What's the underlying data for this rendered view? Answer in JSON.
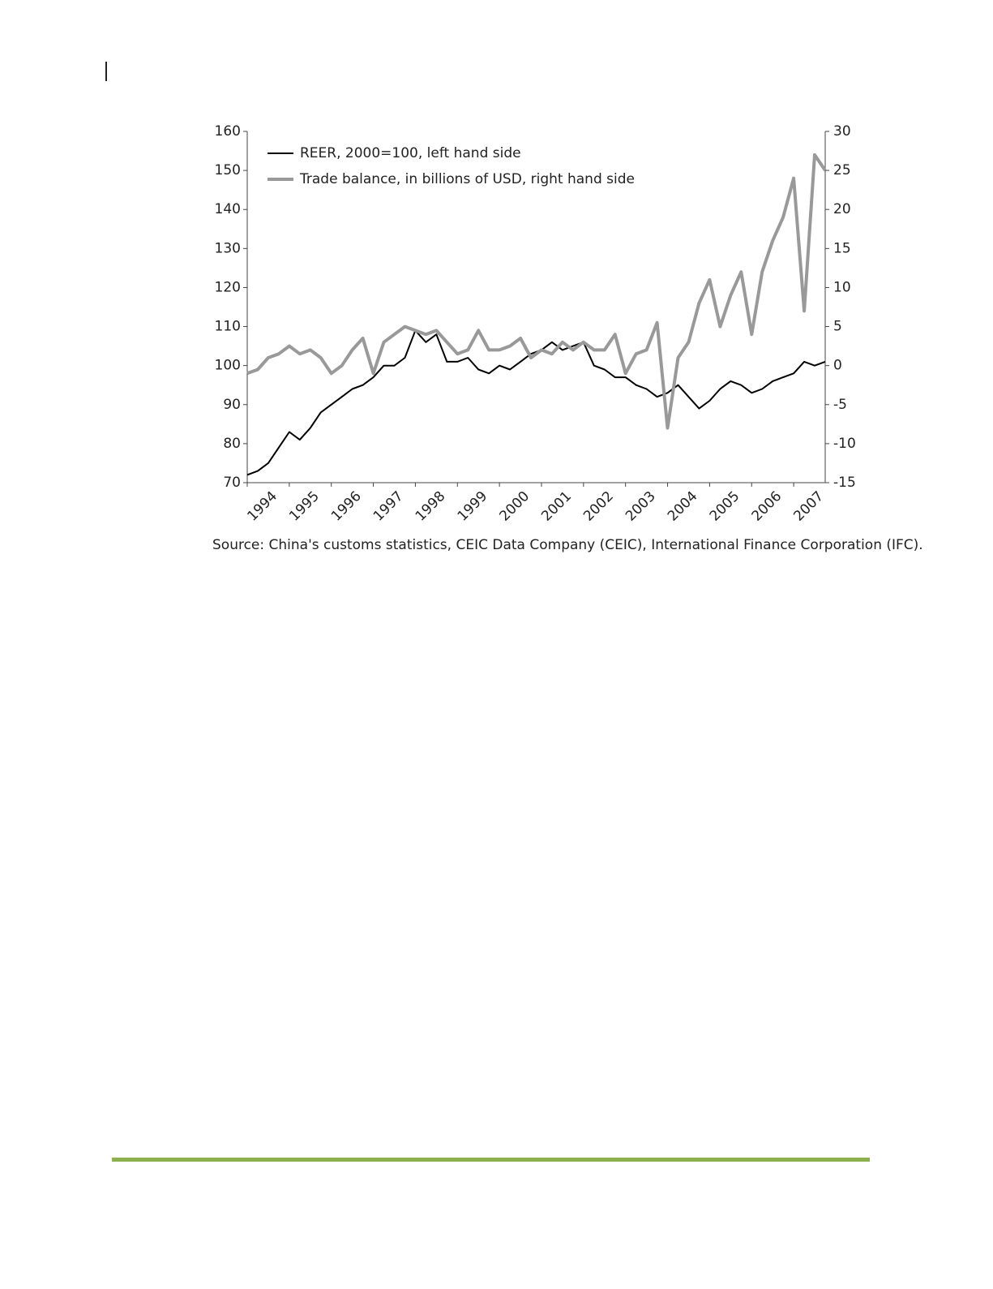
{
  "chart_data": {
    "type": "line",
    "source": "Source: China's customs statistics, CEIC Data Company (CEIC), International Finance Corporation (IFC).",
    "x": [
      1994,
      1994.25,
      1994.5,
      1994.75,
      1995,
      1995.25,
      1995.5,
      1995.75,
      1996,
      1996.25,
      1996.5,
      1996.75,
      1997,
      1997.25,
      1997.5,
      1997.75,
      1998,
      1998.25,
      1998.5,
      1998.75,
      1999,
      1999.25,
      1999.5,
      1999.75,
      2000,
      2000.25,
      2000.5,
      2000.75,
      2001,
      2001.25,
      2001.5,
      2001.75,
      2002,
      2002.25,
      2002.5,
      2002.75,
      2003,
      2003.25,
      2003.5,
      2003.75,
      2004,
      2004.25,
      2004.5,
      2004.75,
      2005,
      2005.25,
      2005.5,
      2005.75,
      2006,
      2006.25,
      2006.5,
      2006.75,
      2007,
      2007.25,
      2007.5,
      2007.75
    ],
    "xlim": [
      1994,
      2007.75
    ],
    "xticks": [
      1994,
      1995,
      1996,
      1997,
      1998,
      1999,
      2000,
      2001,
      2002,
      2003,
      2004,
      2005,
      2006,
      2007
    ],
    "ylim": [
      70,
      160
    ],
    "yticks": [
      70,
      80,
      90,
      100,
      110,
      120,
      130,
      140,
      150,
      160
    ],
    "y2lim": [
      -15,
      30
    ],
    "y2ticks": [
      -15,
      -10,
      -5,
      0,
      5,
      10,
      15,
      20,
      25,
      30
    ],
    "series": [
      {
        "name": "REER, 2000=100, left hand side",
        "color": "#000000",
        "values": [
          72,
          73,
          75,
          79,
          83,
          81,
          84,
          88,
          90,
          92,
          94,
          95,
          97,
          100,
          100,
          102,
          109,
          106,
          108,
          101,
          101,
          102,
          99,
          98,
          100,
          99,
          101,
          103,
          104,
          106,
          104,
          105,
          106,
          100,
          99,
          97,
          97,
          95,
          94,
          92,
          93,
          95,
          92,
          89,
          91,
          94,
          96,
          95,
          93,
          94,
          96,
          97,
          98,
          101,
          100,
          101
        ]
      },
      {
        "name": "Trade balance, in billions of USD, right hand side",
        "color": "#999999",
        "axis": "y2",
        "values": [
          -1,
          -0.5,
          1,
          1.5,
          2.5,
          1.5,
          2,
          1,
          -1,
          0,
          2,
          3.5,
          -1,
          3,
          4,
          5,
          4.5,
          4,
          4.5,
          3,
          1.5,
          2,
          4.5,
          2,
          2,
          2.5,
          3.5,
          1,
          2,
          1.5,
          3,
          2,
          3,
          2,
          2,
          4,
          -1,
          1.5,
          2,
          5.5,
          -8,
          1,
          3,
          8,
          11,
          5,
          9,
          12,
          4,
          12,
          16,
          19,
          24,
          7,
          27,
          25
        ]
      }
    ]
  }
}
